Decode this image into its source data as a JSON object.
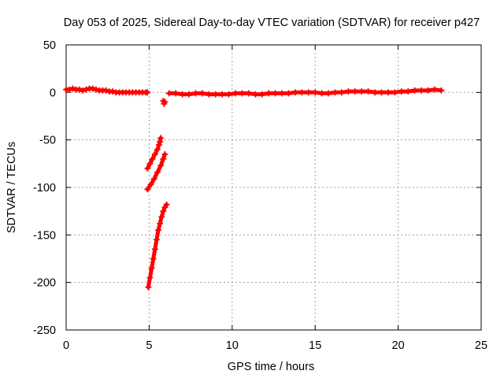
{
  "chart_data": {
    "type": "scatter",
    "title": "Day 053 of 2025, Sidereal Day-to-day VTEC variation (SDTVAR) for receiver p427",
    "xlabel": "GPS time / hours",
    "ylabel": "SDTVAR / TECUs",
    "xlim": [
      0,
      25
    ],
    "ylim": [
      -250,
      50
    ],
    "xticks": [
      0,
      5,
      10,
      15,
      20,
      25
    ],
    "yticks": [
      -250,
      -200,
      -150,
      -100,
      -50,
      0,
      50
    ],
    "grid": true,
    "marker": "plus",
    "series_color": "#ff0000",
    "series": [
      {
        "name": "SDTVAR",
        "segments": [
          {
            "x": [
              0.0,
              0.2,
              0.4,
              0.6,
              0.8,
              1.0,
              1.2,
              1.4,
              1.6,
              1.8,
              2.0,
              2.2,
              2.4,
              2.6,
              2.8,
              3.0,
              3.2,
              3.4,
              3.6,
              3.8,
              4.0,
              4.2,
              4.4,
              4.6,
              4.8,
              4.9
            ],
            "y": [
              3,
              3,
              4,
              3,
              3,
              2,
              3,
              4,
              4,
              3,
              2,
              2,
              2,
              1,
              1,
              0,
              0,
              0,
              0,
              0,
              0,
              0,
              0,
              0,
              0,
              0
            ]
          },
          {
            "x": [
              4.9,
              5.05,
              5.2,
              5.35,
              5.5,
              5.6,
              5.65,
              5.7
            ],
            "y": [
              -80,
              -75,
              -70,
              -65,
              -60,
              -55,
              -52,
              -48
            ]
          },
          {
            "x": [
              4.9,
              5.1,
              5.3,
              5.5,
              5.7,
              5.85,
              5.95
            ],
            "y": [
              -102,
              -97,
              -91,
              -84,
              -77,
              -70,
              -65
            ]
          },
          {
            "x": [
              4.95,
              5.05,
              5.15,
              5.25,
              5.35,
              5.45,
              5.55,
              5.65,
              5.75,
              5.85,
              5.95,
              6.05
            ],
            "y": [
              -205,
              -195,
              -185,
              -175,
              -165,
              -155,
              -145,
              -138,
              -131,
              -125,
              -121,
              -118
            ]
          },
          {
            "x": [
              5.85,
              5.9,
              5.95
            ],
            "y": [
              -9,
              -12,
              -10
            ]
          },
          {
            "x": [
              6.2,
              6.6,
              7.0,
              7.4,
              7.8,
              8.2,
              8.6,
              9.0,
              9.4,
              9.8,
              10.2,
              10.6,
              11.0,
              11.4,
              11.8,
              12.2,
              12.6,
              13.0,
              13.4,
              13.8,
              14.2,
              14.6,
              15.0,
              15.4,
              15.8,
              16.2,
              16.6,
              17.0,
              17.4,
              17.8,
              18.2,
              18.6,
              19.0,
              19.4,
              19.8,
              20.2,
              20.6,
              21.0,
              21.4,
              21.8,
              22.2,
              22.6
            ],
            "y": [
              -1,
              -1,
              -2,
              -2,
              -1,
              -1,
              -2,
              -2,
              -2,
              -2,
              -1,
              -1,
              -1,
              -2,
              -2,
              -1,
              -1,
              -1,
              -1,
              0,
              0,
              0,
              0,
              -1,
              -1,
              0,
              0,
              1,
              1,
              1,
              1,
              0,
              0,
              0,
              0,
              1,
              1,
              2,
              2,
              2,
              3,
              2
            ]
          }
        ]
      }
    ]
  }
}
